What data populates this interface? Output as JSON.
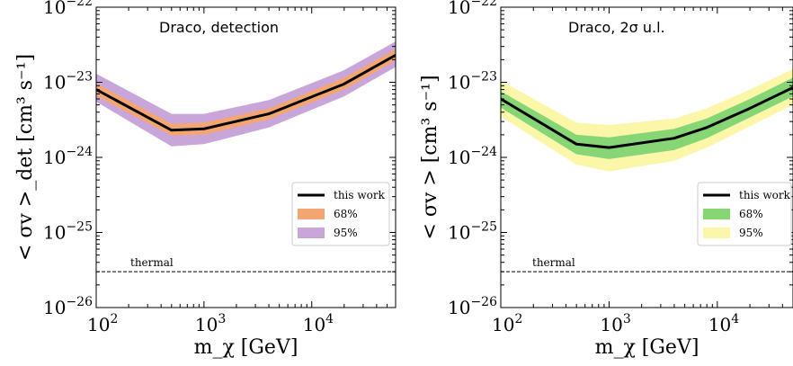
{
  "chart_data": [
    {
      "type": "line",
      "title": "Draco, detection",
      "xlabel": "m_χ [GeV]",
      "ylabel": "< σv >_det [cm³ s⁻¹]",
      "x_scale": "log",
      "y_scale": "log",
      "xlim": [
        100,
        60000
      ],
      "ylim": [
        1e-26,
        1e-22
      ],
      "x_ticks": [
        {
          "value": 100,
          "base": "10",
          "exp": "2"
        },
        {
          "value": 1000,
          "base": "10",
          "exp": "3"
        },
        {
          "value": 10000,
          "base": "10",
          "exp": "4"
        }
      ],
      "y_ticks": [
        {
          "value": 1e-26,
          "base": "10",
          "exp": "−26"
        },
        {
          "value": 1e-25,
          "base": "10",
          "exp": "−25"
        },
        {
          "value": 1e-24,
          "base": "10",
          "exp": "−24"
        },
        {
          "value": 1e-23,
          "base": "10",
          "exp": "−23"
        },
        {
          "value": 1e-22,
          "base": "10",
          "exp": "−22"
        }
      ],
      "x": [
        100,
        500,
        1000,
        4000,
        20000,
        60000
      ],
      "series": [
        {
          "name": "this work",
          "kind": "line",
          "color": "#000000",
          "values": [
            8e-24,
            2.3e-24,
            2.4e-24,
            3.8e-24,
            9.5e-24,
            2.3e-23
          ]
        },
        {
          "name": "68%",
          "kind": "band",
          "color": "#f4a672",
          "lower": [
            6.6e-24,
            1.95e-24,
            2e-24,
            3.2e-24,
            8e-24,
            1.95e-23
          ],
          "upper": [
            9.7e-24,
            2.8e-24,
            2.9e-24,
            4.5e-24,
            1.15e-23,
            2.75e-23
          ]
        },
        {
          "name": "95%",
          "kind": "band",
          "color": "#c9a6d9",
          "lower": [
            5.5e-24,
            1.4e-24,
            1.5e-24,
            2.5e-24,
            6.5e-24,
            1.6e-23
          ],
          "upper": [
            1.3e-23,
            3.8e-24,
            3.8e-24,
            5.8e-24,
            1.45e-23,
            3.5e-23
          ]
        }
      ],
      "reference_line": {
        "label": "thermal",
        "y": 3e-26,
        "style": "dashed"
      },
      "legend_position": "lower-right",
      "grid": false
    },
    {
      "type": "line",
      "title": "Draco, 2σ u.l.",
      "xlabel": "m_χ [GeV]",
      "ylabel": "< σv > [cm³ s⁻¹]",
      "x_scale": "log",
      "y_scale": "log",
      "xlim": [
        100,
        50000
      ],
      "ylim": [
        1e-26,
        1e-22
      ],
      "x_ticks": [
        {
          "value": 100,
          "base": "10",
          "exp": "2"
        },
        {
          "value": 1000,
          "base": "10",
          "exp": "3"
        },
        {
          "value": 10000,
          "base": "10",
          "exp": "4"
        }
      ],
      "y_ticks": [
        {
          "value": 1e-26,
          "base": "10",
          "exp": "−26"
        },
        {
          "value": 1e-25,
          "base": "10",
          "exp": "−25"
        },
        {
          "value": 1e-24,
          "base": "10",
          "exp": "−24"
        },
        {
          "value": 1e-23,
          "base": "10",
          "exp": "−23"
        },
        {
          "value": 1e-22,
          "base": "10",
          "exp": "−22"
        }
      ],
      "x": [
        100,
        500,
        1000,
        4000,
        8000,
        20000,
        50000
      ],
      "series": [
        {
          "name": "this work",
          "kind": "line",
          "color": "#000000",
          "values": [
            6e-24,
            1.5e-24,
            1.35e-24,
            1.8e-24,
            2.5e-24,
            4.5e-24,
            8.5e-24
          ]
        },
        {
          "name": "68%",
          "kind": "band",
          "color": "#86d676",
          "lower": [
            4.6e-24,
            1.1e-24,
            9.5e-25,
            1.25e-24,
            1.8e-24,
            3.4e-24,
            6.5e-24
          ],
          "upper": [
            7.6e-24,
            2e-24,
            1.85e-24,
            2.4e-24,
            3.3e-24,
            6e-24,
            1.15e-23
          ]
        },
        {
          "name": "95%",
          "kind": "band",
          "color": "#fbf6a8",
          "lower": [
            3.5e-24,
            8e-25,
            6.5e-25,
            9e-25,
            1.35e-24,
            2.6e-24,
            5e-24
          ],
          "upper": [
            1.05e-23,
            2.9e-24,
            2.7e-24,
            3.3e-24,
            4.5e-24,
            8e-24,
            1.5e-23
          ]
        }
      ],
      "reference_line": {
        "label": "thermal",
        "y": 3e-26,
        "style": "dashed"
      },
      "legend_position": "lower-right",
      "grid": false
    }
  ]
}
